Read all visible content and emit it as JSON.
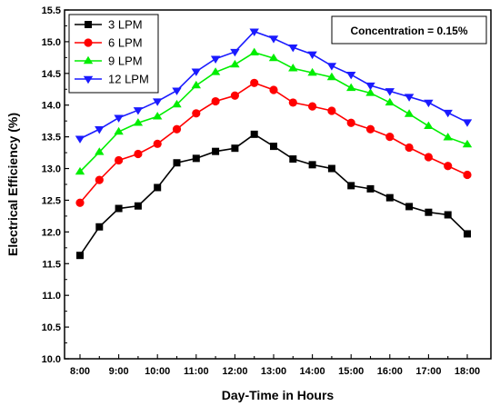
{
  "chart_data": {
    "type": "line",
    "title": "",
    "xlabel": "Day-Time in Hours",
    "ylabel": "Electrical Efficiency (%)",
    "annotation": "Concentration = 0.15%",
    "x": [
      "8:00",
      "8:30",
      "9:00",
      "9:30",
      "10:00",
      "10:30",
      "11:00",
      "11:30",
      "12:00",
      "12:30",
      "13:00",
      "13:30",
      "14:00",
      "14:30",
      "15:00",
      "15:30",
      "16:00",
      "16:30",
      "17:00",
      "17:30",
      "18:00"
    ],
    "x_tick_labels": [
      "8:00",
      "9:00",
      "10:00",
      "11:00",
      "12:00",
      "13:00",
      "14:00",
      "15:00",
      "16:00",
      "17:00",
      "18:00"
    ],
    "ylim": [
      10.0,
      15.5
    ],
    "y_ticks": [
      "10.0",
      "10.5",
      "11.0",
      "11.5",
      "12.0",
      "12.5",
      "13.0",
      "13.5",
      "14.0",
      "14.5",
      "15.0",
      "15.5"
    ],
    "grid": false,
    "legend_position": "top-left",
    "series": [
      {
        "name": "3 LPM",
        "color": "#000000",
        "marker": "square",
        "values": [
          11.63,
          12.08,
          12.37,
          12.41,
          12.7,
          13.09,
          13.16,
          13.27,
          13.32,
          13.54,
          13.35,
          13.15,
          13.06,
          13.0,
          12.73,
          12.68,
          12.54,
          12.4,
          12.31,
          12.27,
          11.97
        ]
      },
      {
        "name": "6 LPM",
        "color": "#ff0000",
        "marker": "circle",
        "values": [
          12.46,
          12.82,
          13.13,
          13.23,
          13.39,
          13.62,
          13.87,
          14.06,
          14.15,
          14.35,
          14.24,
          14.04,
          13.98,
          13.91,
          13.72,
          13.62,
          13.5,
          13.33,
          13.18,
          13.04,
          12.9
        ]
      },
      {
        "name": "9 LPM",
        "color": "#00ee00",
        "marker": "triangle-up",
        "values": [
          12.95,
          13.26,
          13.58,
          13.72,
          13.82,
          14.01,
          14.31,
          14.52,
          14.64,
          14.83,
          14.74,
          14.58,
          14.51,
          14.44,
          14.27,
          14.19,
          14.04,
          13.86,
          13.67,
          13.49,
          13.38
        ]
      },
      {
        "name": "12 LPM",
        "color": "#1a1aff",
        "marker": "triangle-down",
        "values": [
          13.47,
          13.62,
          13.8,
          13.92,
          14.06,
          14.23,
          14.53,
          14.73,
          14.84,
          15.16,
          15.05,
          14.91,
          14.8,
          14.62,
          14.48,
          14.31,
          14.22,
          14.13,
          14.04,
          13.88,
          13.73
        ]
      }
    ]
  }
}
